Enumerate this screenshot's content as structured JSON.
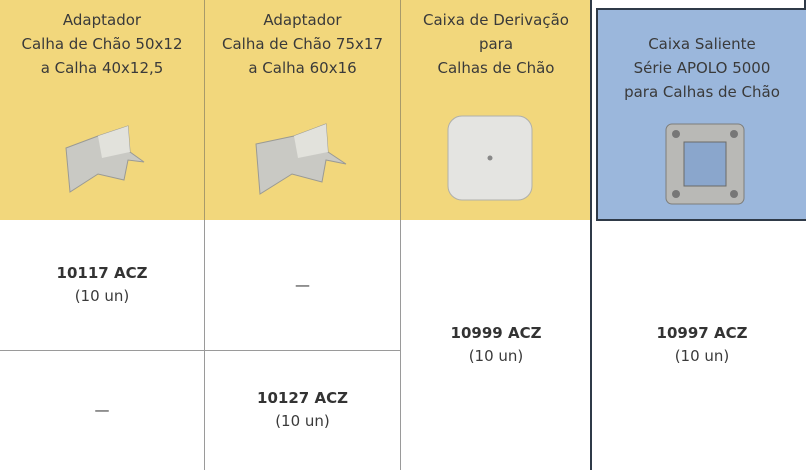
{
  "table": {
    "headers": [
      {
        "lines": [
          "Adaptador",
          "Calha de Chão 50x12",
          "a Calha 40x12,5"
        ]
      },
      {
        "lines": [
          "Adaptador",
          "Calha de Chão 75x17",
          "a Calha 60x16"
        ]
      },
      {
        "lines": [
          "Caixa de Derivação",
          "para",
          "Calhas de Chão"
        ]
      },
      {
        "lines": [
          "Caixa Saliente",
          "Série APOLO 5000",
          "para Calhas de Chão"
        ]
      }
    ],
    "body": [
      {
        "code": "10117 ACZ",
        "qty": "(10 un)"
      },
      {
        "text": "—"
      },
      {
        "text": "—"
      },
      {
        "code": "10127 ACZ",
        "qty": "(10 un)"
      },
      {
        "code": "10999 ACZ",
        "qty": "(10 un)"
      },
      {
        "code": "10997 ACZ",
        "qty": "(10 un)"
      }
    ]
  }
}
